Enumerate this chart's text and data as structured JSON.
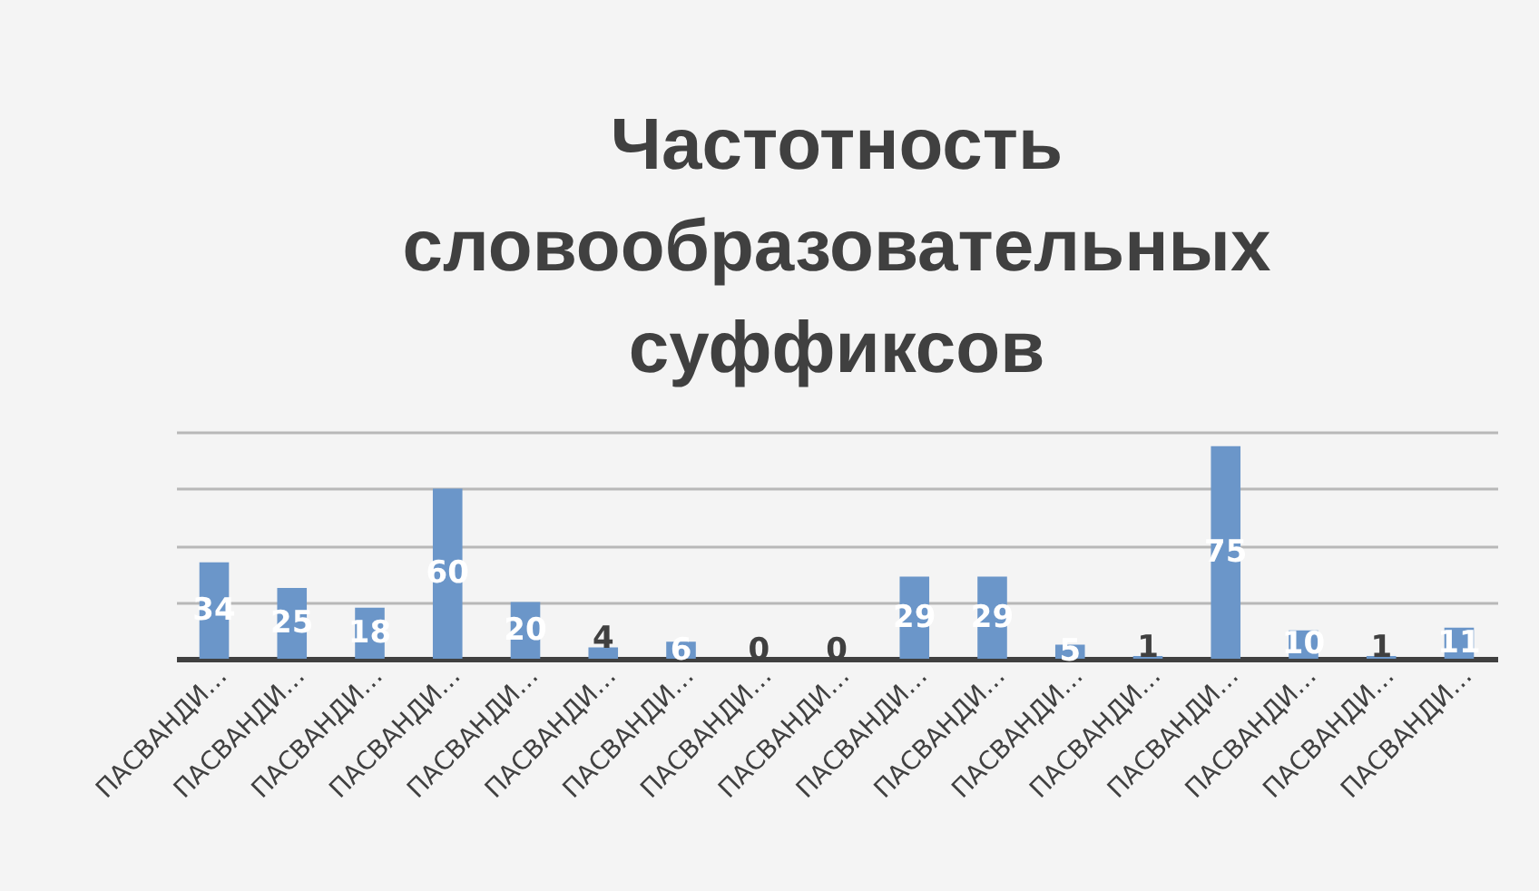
{
  "chart_data": {
    "type": "bar",
    "title": "Частотность словообразовательных суффиксов",
    "categories": [
      "ПАСВАНДИ…",
      "ПАСВАНДИ…",
      "ПАСВАНДИ…",
      "ПАСВАНДИ…",
      "ПАСВАНДИ…",
      "ПАСВАНДИ…",
      "ПАСВАНДИ…",
      "ПАСВАНДИ…",
      "ПАСВАНДИ…",
      "ПАСВАНДИ…",
      "ПАСВАНДИ…",
      "ПАСВАНДИ…",
      "ПАСВАНДИ…",
      "ПАСВАНДИ…",
      "ПАСВАНДИ…",
      "ПАСВАНДИ…",
      "ПАСВАНДИ…"
    ],
    "values": [
      34,
      25,
      18,
      60,
      20,
      4,
      6,
      0,
      0,
      29,
      29,
      5,
      1,
      75,
      10,
      1,
      11
    ],
    "color": "#6b96c9",
    "ylim": [
      0,
      80
    ],
    "yticks": [
      {
        "value": 0,
        "label": null
      },
      {
        "value": 20,
        "label": null
      },
      {
        "value": 40,
        "label": null
      },
      {
        "value": 60,
        "label": null
      },
      {
        "value": 80,
        "label": null
      }
    ],
    "grid": "y",
    "tick_labels": "x",
    "data_labels": true
  }
}
